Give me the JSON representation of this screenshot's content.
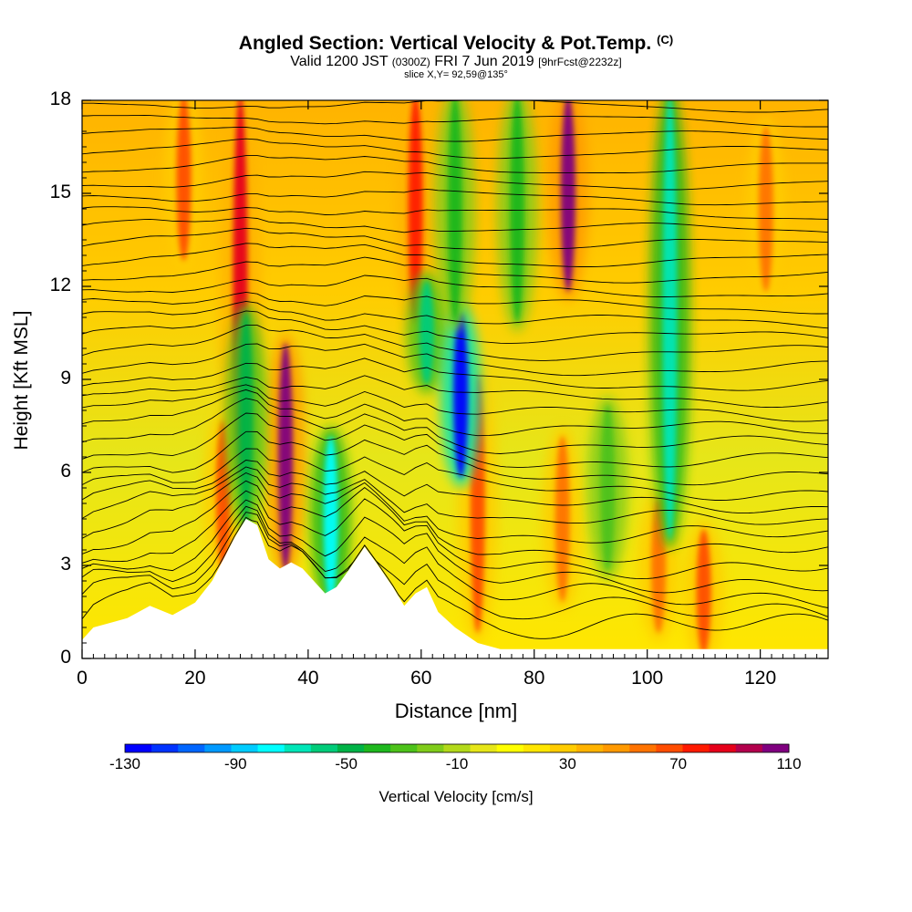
{
  "header": {
    "title": "Angled Section: Vertical Velocity & Pot.Temp.",
    "title_suffix": "(C)",
    "subtitle_valid": "Valid 1200 JST",
    "subtitle_utc": "(0300Z)",
    "subtitle_date": "FRI 7 Jun 2019",
    "subtitle_fcst": "[9hrFcst@2232z]",
    "slice": "slice X,Y= 92,59@135°"
  },
  "chart_data": {
    "type": "heatmap",
    "title": "Angled Section: Vertical Velocity & Pot.Temp.",
    "xlabel": "Distance [nm]",
    "ylabel": "Height [Kft MSL]",
    "xlim": [
      0,
      132
    ],
    "ylim": [
      0,
      18
    ],
    "x_ticks": [
      "0",
      "20",
      "40",
      "60",
      "80",
      "100",
      "120"
    ],
    "y_ticks": [
      "0",
      "3",
      "6",
      "9",
      "12",
      "15",
      "18"
    ],
    "x_tick_values": [
      0,
      20,
      40,
      60,
      80,
      100,
      120
    ],
    "y_tick_values": [
      0,
      3,
      6,
      9,
      12,
      15,
      18
    ],
    "colorbar": {
      "title": "Vertical Velocity [cm/s]",
      "range": [
        -130,
        110
      ],
      "step": 10,
      "tick_labels": [
        "-130",
        "-90",
        "-50",
        "-10",
        "30",
        "70",
        "110"
      ],
      "tick_values": [
        -130,
        -90,
        -50,
        -10,
        30,
        70,
        110
      ],
      "colors": [
        "#0000ff",
        "#0033ff",
        "#0066ff",
        "#0099ff",
        "#00ccff",
        "#00ffff",
        "#00e6b8",
        "#00cc7a",
        "#00b347",
        "#1fb81f",
        "#4dc21a",
        "#80cc1a",
        "#b3d91a",
        "#e6e619",
        "#ffff00",
        "#ffe600",
        "#ffcc00",
        "#ffb300",
        "#ff9900",
        "#ff7300",
        "#ff4d00",
        "#ff1a00",
        "#e6001a",
        "#b3004d",
        "#800080"
      ]
    },
    "terrain": [
      [
        0,
        0.6
      ],
      [
        2,
        1.0
      ],
      [
        8,
        1.3
      ],
      [
        12,
        1.7
      ],
      [
        16,
        1.4
      ],
      [
        20,
        1.8
      ],
      [
        23,
        2.5
      ],
      [
        25,
        3.2
      ],
      [
        27,
        3.9
      ],
      [
        29,
        4.5
      ],
      [
        31,
        4.3
      ],
      [
        33,
        3.2
      ],
      [
        35,
        2.9
      ],
      [
        37,
        3.1
      ],
      [
        39,
        2.9
      ],
      [
        41,
        2.5
      ],
      [
        43,
        2.1
      ],
      [
        45,
        2.3
      ],
      [
        47,
        2.8
      ],
      [
        50,
        3.6
      ],
      [
        52,
        3.1
      ],
      [
        55,
        2.3
      ],
      [
        57,
        1.7
      ],
      [
        59,
        2.1
      ],
      [
        61,
        2.3
      ],
      [
        63,
        1.5
      ],
      [
        66,
        1.0
      ],
      [
        70,
        0.5
      ],
      [
        74,
        0.3
      ],
      [
        132,
        0.3
      ]
    ],
    "uplift_cores": [
      {
        "x": 18,
        "ymin": 13,
        "ymax": 18,
        "value": 70
      },
      {
        "x": 25,
        "ymin": 3,
        "ymax": 7.5,
        "value": 70
      },
      {
        "x": 28,
        "ymin": 6,
        "ymax": 18,
        "value": 90
      },
      {
        "x": 36,
        "ymin": 3,
        "ymax": 10,
        "value": 110
      },
      {
        "x": 59,
        "ymin": 11,
        "ymax": 18,
        "value": 80
      },
      {
        "x": 70,
        "ymin": 1,
        "ymax": 9,
        "value": 70
      },
      {
        "x": 86,
        "ymin": 12,
        "ymax": 18,
        "value": 110
      },
      {
        "x": 85,
        "ymin": 2,
        "ymax": 7,
        "value": 60
      },
      {
        "x": 102,
        "ymin": 1,
        "ymax": 5,
        "value": 60
      },
      {
        "x": 110,
        "ymin": 0.3,
        "ymax": 4,
        "value": 70
      },
      {
        "x": 121,
        "ymin": 12,
        "ymax": 17,
        "value": 60
      }
    ],
    "sink_cores": [
      {
        "x": 29,
        "ymin": 4.5,
        "ymax": 11,
        "value": -50
      },
      {
        "x": 44,
        "ymin": 2,
        "ymax": 7,
        "value": -80
      },
      {
        "x": 61,
        "ymin": 9,
        "ymax": 12,
        "value": -60
      },
      {
        "x": 67,
        "ymin": 6,
        "ymax": 11,
        "value": -130
      },
      {
        "x": 66,
        "ymin": 11,
        "ymax": 18,
        "value": -40
      },
      {
        "x": 77,
        "ymin": 11,
        "ymax": 18,
        "value": -40
      },
      {
        "x": 93,
        "ymin": 3,
        "ymax": 8,
        "value": -30
      },
      {
        "x": 104,
        "ymin": 4,
        "ymax": 18,
        "value": -70
      }
    ],
    "isentrope_levels_kft": [
      0.8,
      1.3,
      1.8,
      2.3,
      2.8,
      3.3,
      3.8,
      4.3,
      4.8,
      5.3,
      5.8,
      6.3,
      6.8,
      7.3,
      7.8,
      8.3,
      8.8,
      9.3,
      9.8,
      10.3,
      10.8,
      11.3,
      11.8,
      12.3,
      12.8,
      13.3,
      13.8,
      14.3,
      14.8,
      15.3,
      15.8,
      16.3,
      16.8,
      17.3,
      17.8
    ]
  }
}
